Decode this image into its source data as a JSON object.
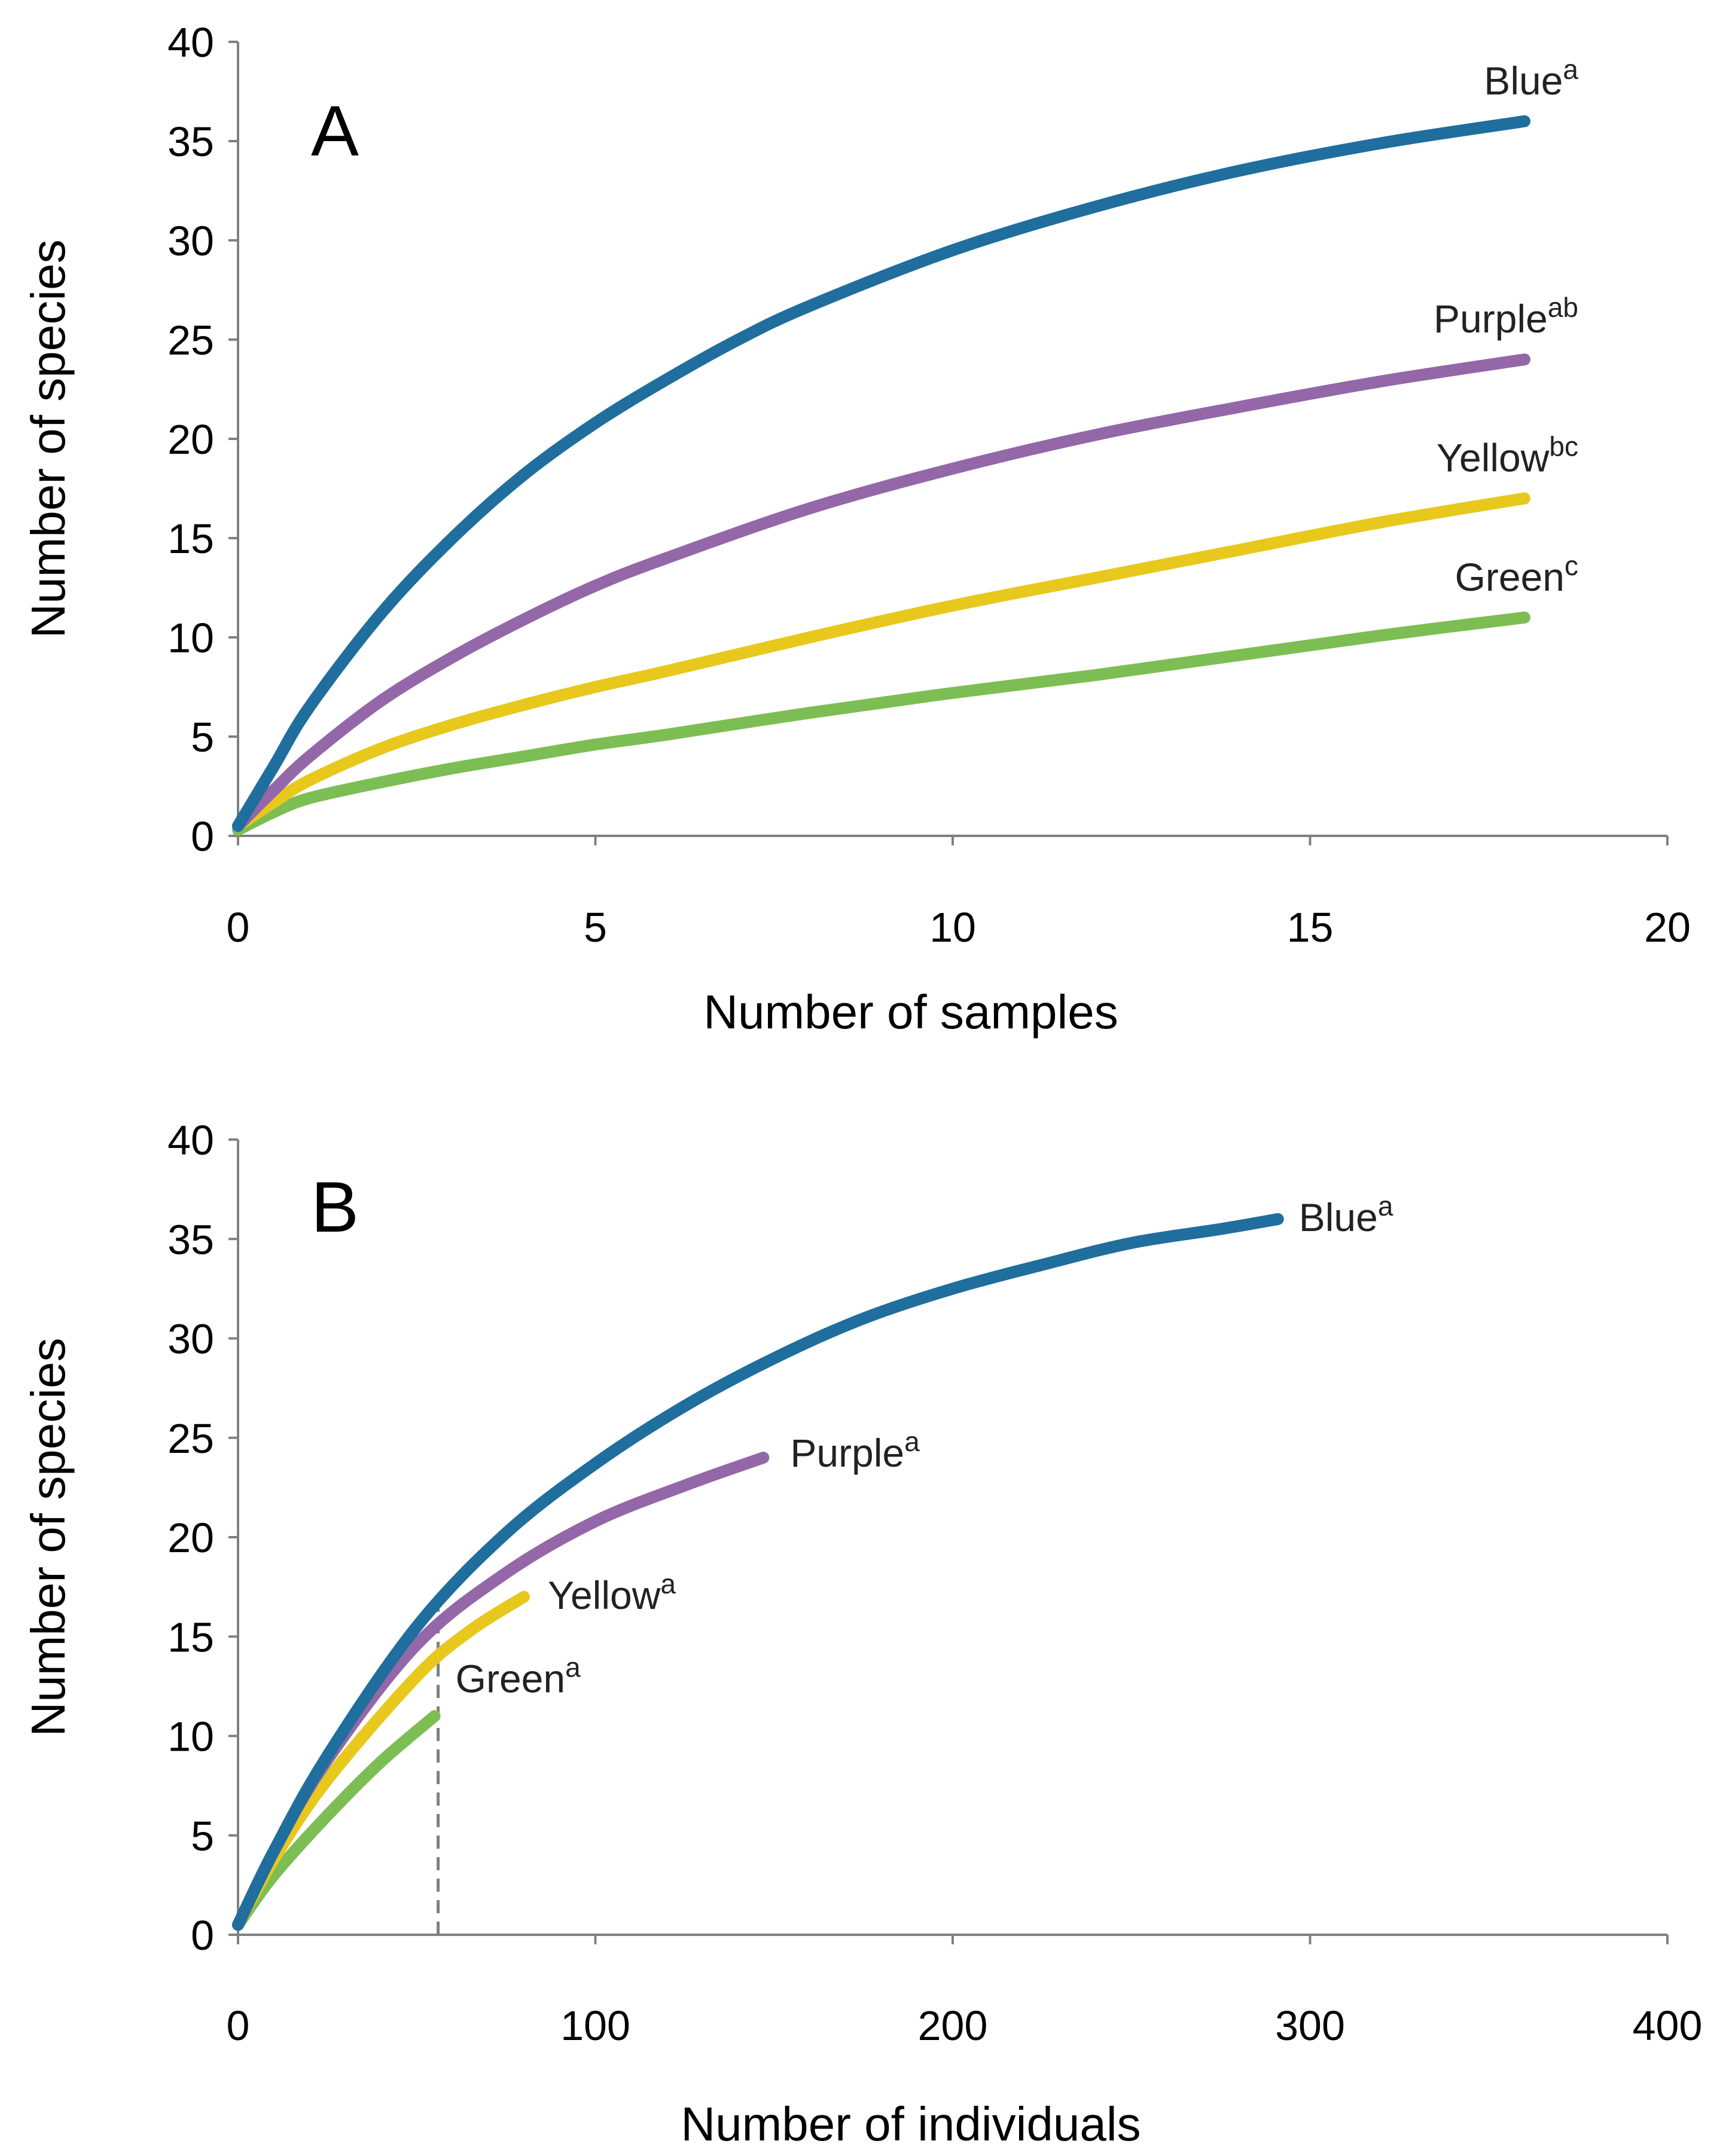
{
  "chart_data": [
    {
      "type": "line",
      "panel": "A",
      "xlabel": "Number of samples",
      "ylabel": "Number of species",
      "xlim": [
        0,
        20
      ],
      "ylim": [
        0,
        40
      ],
      "xticks": [
        "0",
        "5",
        "10",
        "15",
        "20"
      ],
      "yticks": [
        "0",
        "5",
        "10",
        "15",
        "20",
        "25",
        "30",
        "35",
        "40"
      ],
      "series": [
        {
          "name": "Blue",
          "sup": "a",
          "color": "#1F6E9E",
          "x": [
            0,
            0.5,
            1,
            2,
            3,
            4,
            5,
            6,
            7,
            8,
            10,
            12,
            14,
            16,
            18
          ],
          "y": [
            0.5,
            3.5,
            6.5,
            11.2,
            15,
            18.2,
            20.8,
            23,
            25,
            26.7,
            29.5,
            31.7,
            33.5,
            34.9,
            36
          ]
        },
        {
          "name": "Purple",
          "sup": "ab",
          "color": "#9467A8",
          "x": [
            0,
            0.5,
            1,
            2,
            3,
            4,
            5,
            6,
            8,
            10,
            12,
            14,
            16,
            18
          ],
          "y": [
            0.5,
            2.3,
            4,
            6.8,
            9,
            10.9,
            12.6,
            14,
            16.5,
            18.5,
            20.2,
            21.6,
            22.9,
            24
          ]
        },
        {
          "name": "Yellow",
          "sup": "bc",
          "color": "#E8C81C",
          "x": [
            0,
            0.5,
            1,
            2,
            3,
            4,
            5,
            6,
            8,
            10,
            12,
            14,
            16,
            18
          ],
          "y": [
            0.5,
            1.7,
            2.8,
            4.4,
            5.6,
            6.6,
            7.5,
            8.3,
            10,
            11.6,
            13,
            14.4,
            15.8,
            17
          ]
        },
        {
          "name": "Green",
          "sup": "c",
          "color": "#7DBE54",
          "x": [
            0,
            0.5,
            1,
            2,
            3,
            4,
            5,
            6,
            8,
            10,
            12,
            14,
            16,
            18
          ],
          "y": [
            0.3,
            1.2,
            1.9,
            2.7,
            3.4,
            4,
            4.6,
            5.1,
            6.2,
            7.2,
            8.1,
            9.1,
            10.1,
            11
          ]
        }
      ]
    },
    {
      "type": "line",
      "panel": "B",
      "xlabel": "Number of individuals",
      "ylabel": "Number of species",
      "xlim": [
        0,
        400
      ],
      "ylim": [
        0,
        40
      ],
      "xticks": [
        "0",
        "100",
        "200",
        "300",
        "400"
      ],
      "yticks": [
        "0",
        "5",
        "10",
        "15",
        "20",
        "25",
        "30",
        "35",
        "40"
      ],
      "reference_x": 56,
      "series": [
        {
          "name": "Blue",
          "sup": "a",
          "color": "#1F6E9E",
          "x": [
            0,
            10,
            25,
            50,
            75,
            100,
            125,
            150,
            175,
            200,
            225,
            250,
            275,
            291
          ],
          "y": [
            0.5,
            4.2,
            9,
            15.5,
            20.2,
            23.7,
            26.6,
            29,
            31,
            32.5,
            33.7,
            34.8,
            35.5,
            36
          ]
        },
        {
          "name": "Purple",
          "sup": "a",
          "color": "#9467A8",
          "x": [
            0,
            10,
            25,
            50,
            75,
            100,
            125,
            147
          ],
          "y": [
            0.5,
            4.2,
            8.8,
            14.6,
            18.2,
            20.8,
            22.6,
            24
          ]
        },
        {
          "name": "Yellow",
          "sup": "a",
          "color": "#E8C81C",
          "x": [
            0,
            10,
            25,
            50,
            65,
            80
          ],
          "y": [
            0.5,
            3.8,
            7.8,
            13,
            15.3,
            17
          ]
        },
        {
          "name": "Green",
          "sup": "a",
          "color": "#7DBE54",
          "x": [
            0,
            10,
            25,
            40,
            55
          ],
          "y": [
            0.5,
            3,
            6,
            8.7,
            11
          ]
        }
      ]
    }
  ]
}
